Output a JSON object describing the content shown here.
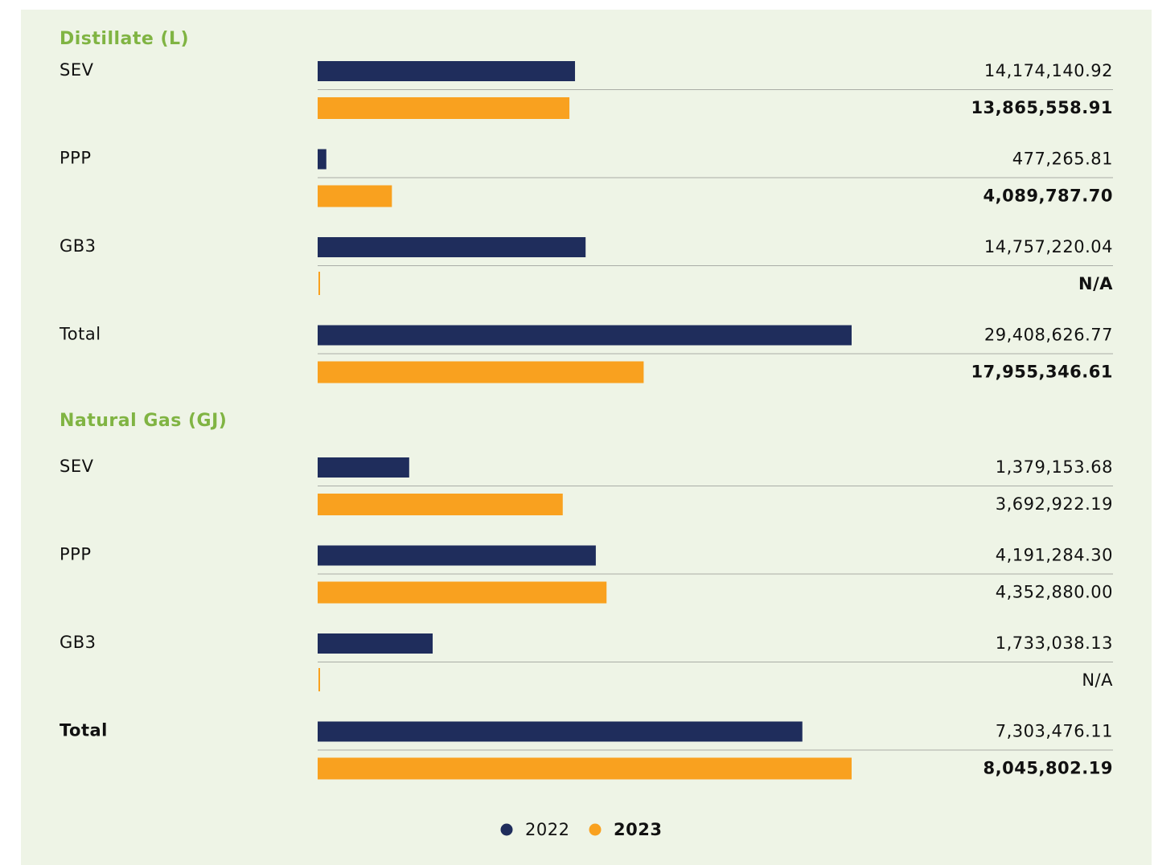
{
  "chart_data": [
    {
      "type": "bar",
      "title": "Distillate (L)",
      "categories": [
        "SEV",
        "PPP",
        "GB3",
        "Total"
      ],
      "series": [
        {
          "name": "2022",
          "color": "#1f2d5c",
          "values": [
            14174140.92,
            477265.81,
            14757220.04,
            29408626.77
          ],
          "value_labels": [
            "14,174,140.92",
            "477,265.81",
            "14,757,220.04",
            "29,408,626.77"
          ]
        },
        {
          "name": "2023",
          "color": "#f9a11f",
          "values": [
            13865558.91,
            4089787.7,
            null,
            17955346.61
          ],
          "value_labels": [
            "13,865,558.91",
            "4,089,787.70",
            "N/A",
            "17,955,346.61"
          ]
        }
      ]
    },
    {
      "type": "bar",
      "title": "Natural Gas (GJ)",
      "categories": [
        "SEV",
        "PPP",
        "GB3",
        "Total"
      ],
      "series": [
        {
          "color": "#1f2d5c",
          "values": [
            1379153.68,
            4191284.3,
            1733038.13,
            7303476.11
          ],
          "value_labels": [
            "1,379,153.68",
            "4,191,284.30",
            "1,733,038.13",
            "7,303,476.11"
          ]
        },
        {
          "color": "#f9a11f",
          "values": [
            3692922.19,
            4352880.0,
            null,
            8045802.19
          ],
          "value_labels": [
            "3,692,922.19",
            "4,352,880.00",
            "N/A",
            "8,045,802.19"
          ]
        }
      ]
    }
  ]
}
